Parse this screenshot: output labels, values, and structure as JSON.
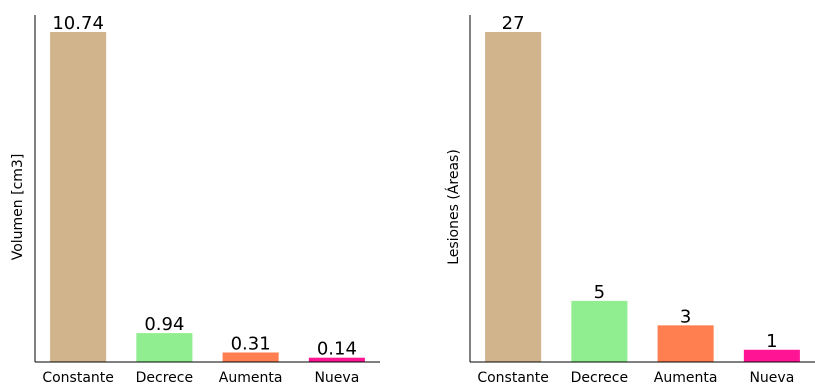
{
  "chart_data": [
    {
      "type": "bar",
      "categories": [
        "Constante",
        "Decrece",
        "Aumenta",
        "Nueva"
      ],
      "values": [
        10.74,
        0.94,
        0.31,
        0.14
      ],
      "value_labels": [
        "10.74",
        "0.94",
        "0.31",
        "0.14"
      ],
      "title": "",
      "xlabel": "",
      "ylabel": "Volumen [cm3]",
      "ylim": [
        0,
        10.74
      ],
      "colors": [
        "#d2b48c",
        "#90ee90",
        "#ff7f50",
        "#ff1493"
      ],
      "grid": false,
      "legend": "none"
    },
    {
      "type": "bar",
      "categories": [
        "Constante",
        "Decrece",
        "Aumenta",
        "Nueva"
      ],
      "values": [
        27,
        5,
        3,
        1
      ],
      "value_labels": [
        "27",
        "5",
        "3",
        "1"
      ],
      "title": "",
      "xlabel": "",
      "ylabel": "Lesiones (Áreas)",
      "ylim": [
        0,
        27
      ],
      "colors": [
        "#d2b48c",
        "#90ee90",
        "#ff7f50",
        "#ff1493"
      ],
      "grid": false,
      "legend": "none"
    }
  ]
}
